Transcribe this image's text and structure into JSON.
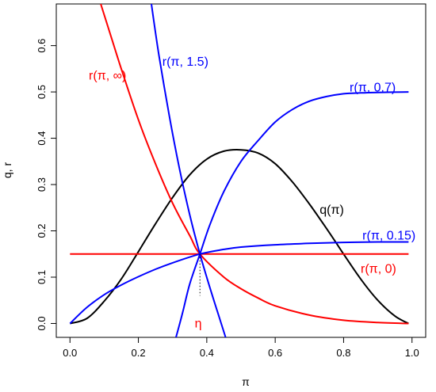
{
  "chart_data": {
    "type": "line",
    "title": "",
    "xlabel": "π",
    "ylabel": "q, r",
    "xlim": [
      -0.04,
      1.04
    ],
    "ylim": [
      -0.03,
      0.69
    ],
    "x_ticks": [
      "0.0",
      "0.2",
      "0.4",
      "0.6",
      "0.8",
      "1.0"
    ],
    "y_ticks": [
      "0.0",
      "0.1",
      "0.2",
      "0.3",
      "0.4",
      "0.5",
      "0.6"
    ],
    "grid": false,
    "legend": "none",
    "colors": {
      "red": "#ff0000",
      "blue": "#0000ff",
      "black": "#000000"
    },
    "series": [
      {
        "name": "q(π)",
        "color": "#000000",
        "x": [
          0,
          0.05,
          0.1,
          0.15,
          0.2,
          0.25,
          0.3,
          0.35,
          0.4,
          0.45,
          0.5,
          0.55,
          0.6,
          0.65,
          0.7,
          0.75,
          0.8,
          0.85,
          0.9,
          0.95,
          0.99
        ],
        "y": [
          0,
          0.011,
          0.048,
          0.096,
          0.155,
          0.215,
          0.272,
          0.321,
          0.355,
          0.372,
          0.375,
          0.368,
          0.345,
          0.306,
          0.258,
          0.205,
          0.15,
          0.096,
          0.05,
          0.016,
          0
        ]
      },
      {
        "name": "r(π, 0)",
        "color": "#ff0000",
        "x": [
          0,
          0.99
        ],
        "y": [
          0.15,
          0.15
        ]
      },
      {
        "name": "r(π, ∞)",
        "color": "#ff0000",
        "x": [
          0.09,
          0.12,
          0.15,
          0.2,
          0.25,
          0.3,
          0.35,
          0.38,
          0.45,
          0.5,
          0.55,
          0.6,
          0.7,
          0.8,
          0.9,
          0.99
        ],
        "y": [
          0.69,
          0.62,
          0.55,
          0.44,
          0.345,
          0.26,
          0.19,
          0.15,
          0.1,
          0.075,
          0.055,
          0.038,
          0.018,
          0.007,
          0.002,
          0
        ]
      },
      {
        "name": "r(π, 0.15)",
        "color": "#0000ff",
        "x": [
          0,
          0.05,
          0.1,
          0.15,
          0.2,
          0.25,
          0.3,
          0.38,
          0.45,
          0.5,
          0.6,
          0.7,
          0.8,
          0.9,
          0.99
        ],
        "y": [
          0,
          0.035,
          0.062,
          0.083,
          0.101,
          0.117,
          0.131,
          0.15,
          0.16,
          0.165,
          0.17,
          0.173,
          0.175,
          0.176,
          0.176
        ]
      },
      {
        "name": "r(π, 0.7)",
        "color": "#0000ff",
        "x": [
          0.31,
          0.33,
          0.35,
          0.38,
          0.41,
          0.45,
          0.5,
          0.55,
          0.6,
          0.65,
          0.7,
          0.75,
          0.8,
          0.85,
          0.9,
          0.99
        ],
        "y": [
          -0.03,
          0.025,
          0.085,
          0.15,
          0.215,
          0.285,
          0.35,
          0.395,
          0.435,
          0.462,
          0.48,
          0.49,
          0.496,
          0.498,
          0.499,
          0.5
        ]
      },
      {
        "name": "r(π, 1.5)",
        "color": "#0000ff",
        "x": [
          0.238,
          0.26,
          0.29,
          0.32,
          0.35,
          0.38,
          0.41,
          0.44,
          0.455
        ],
        "y": [
          0.69,
          0.58,
          0.45,
          0.335,
          0.235,
          0.15,
          0.075,
          0.005,
          -0.03
        ]
      }
    ],
    "labels": [
      {
        "text": "q(π)",
        "color": "#000000",
        "x": 0.73,
        "y": 0.245,
        "anchor": "start"
      },
      {
        "text": "r(π, ∞)",
        "color": "#ff0000",
        "x": 0.11,
        "y": 0.535,
        "anchor": "middle"
      },
      {
        "text": "r(π, 1.5)",
        "color": "#0000ff",
        "x": 0.27,
        "y": 0.565,
        "anchor": "start"
      },
      {
        "text": "r(π, 0.7)",
        "color": "#0000ff",
        "x": 0.885,
        "y": 0.51,
        "anchor": "middle"
      },
      {
        "text": "r(π, 0.15)",
        "color": "#0000ff",
        "x": 0.855,
        "y": 0.19,
        "anchor": "start"
      },
      {
        "text": "r(π, 0)",
        "color": "#ff0000",
        "x": 0.85,
        "y": 0.118,
        "anchor": "start"
      },
      {
        "text": "η",
        "color": "#ff0000",
        "x": 0.375,
        "y": 0.0,
        "anchor": "middle"
      }
    ],
    "eta_marker": {
      "x": 0.38,
      "y_top": 0.15,
      "y_bottom": 0.06,
      "style": "dotted"
    }
  }
}
